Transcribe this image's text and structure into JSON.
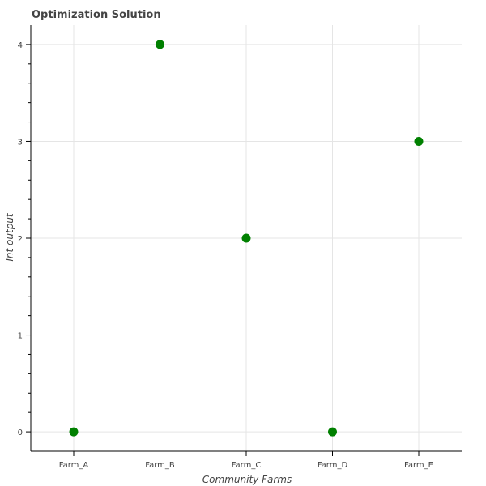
{
  "chart_data": {
    "type": "scatter",
    "title": "Optimization Solution",
    "xlabel": "Community Farms",
    "ylabel": "Int output",
    "categories": [
      "Farm_A",
      "Farm_B",
      "Farm_C",
      "Farm_D",
      "Farm_E"
    ],
    "values": [
      0,
      4,
      2,
      0,
      3
    ],
    "ylim": [
      -0.2,
      4.2
    ],
    "yticks": [
      0,
      1,
      2,
      3,
      4
    ],
    "grid": true,
    "marker_color": "#008000"
  }
}
